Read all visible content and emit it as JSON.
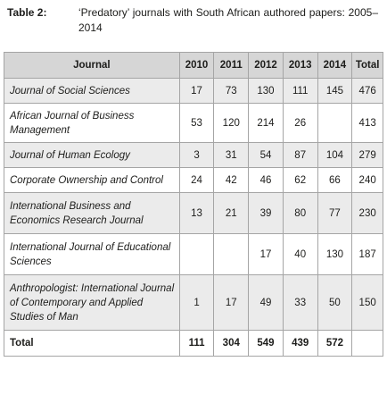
{
  "caption": {
    "label": "Table 2:",
    "text": "‘Predatory’ journals with South African authored papers: 2005–2014"
  },
  "table": {
    "headers": [
      "Journal",
      "2010",
      "2011",
      "2012",
      "2013",
      "2014",
      "Total"
    ],
    "rows": [
      {
        "journal": "Journal of Social Sciences",
        "values": [
          "17",
          "73",
          "130",
          "111",
          "145",
          "476"
        ]
      },
      {
        "journal": "African Journal of Business Management",
        "values": [
          "53",
          "120",
          "214",
          "26",
          "",
          "413"
        ]
      },
      {
        "journal": "Journal of Human Ecology",
        "values": [
          "3",
          "31",
          "54",
          "87",
          "104",
          "279"
        ]
      },
      {
        "journal": "Corporate Ownership and Control",
        "values": [
          "24",
          "42",
          "46",
          "62",
          "66",
          "240"
        ]
      },
      {
        "journal": "International Business and Economics Research Journal",
        "values": [
          "13",
          "21",
          "39",
          "80",
          "77",
          "230"
        ]
      },
      {
        "journal": "International Journal of Educational Sciences",
        "values": [
          "",
          "",
          "17",
          "40",
          "130",
          "187"
        ]
      },
      {
        "journal": "Anthropologist: International Journal of Contemporary and Applied Studies of Man",
        "values": [
          "1",
          "17",
          "49",
          "33",
          "50",
          "150"
        ]
      }
    ],
    "total": {
      "label": "Total",
      "values": [
        "111",
        "304",
        "549",
        "439",
        "572",
        ""
      ]
    }
  }
}
